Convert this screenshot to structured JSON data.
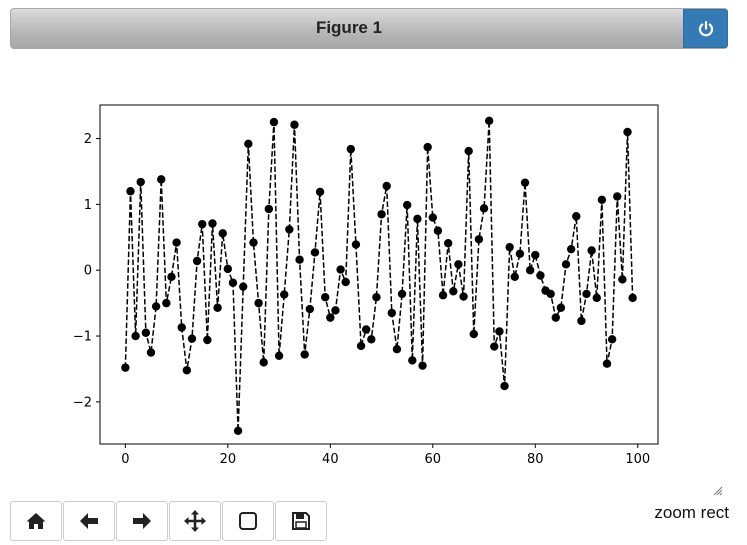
{
  "window": {
    "title": "Figure 1"
  },
  "toolbar": {
    "buttons": [
      {
        "name": "home-button",
        "icon": "home-icon"
      },
      {
        "name": "back-button",
        "icon": "arrow-left-icon"
      },
      {
        "name": "forward-button",
        "icon": "arrow-right-icon"
      },
      {
        "name": "pan-button",
        "icon": "move-icon"
      },
      {
        "name": "zoom-button",
        "icon": "zoom-rect-icon"
      },
      {
        "name": "save-button",
        "icon": "save-icon"
      }
    ]
  },
  "status": {
    "message": "zoom rect"
  },
  "colors": {
    "accent": "#337ab7",
    "series": "#000000"
  },
  "chart_data": {
    "type": "line",
    "title": "",
    "xlabel": "",
    "ylabel": "",
    "xlim": [
      -4.95,
      103.95
    ],
    "ylim": [
      -2.64,
      2.51
    ],
    "xticks": [
      0,
      20,
      40,
      60,
      80,
      100
    ],
    "xtick_labels": [
      "0",
      "20",
      "40",
      "60",
      "80",
      "100"
    ],
    "yticks": [
      2,
      1,
      0,
      -1,
      -2
    ],
    "ytick_labels": [
      "2",
      "1",
      "0",
      "−1",
      "−2"
    ],
    "grid": false,
    "series": [
      {
        "style": "dashed line with circle markers",
        "color": "#000000",
        "x": [
          0,
          1,
          2,
          3,
          4,
          5,
          6,
          7,
          8,
          9,
          10,
          11,
          12,
          13,
          14,
          15,
          16,
          17,
          18,
          19,
          20,
          21,
          22,
          23,
          24,
          25,
          26,
          27,
          28,
          29,
          30,
          31,
          32,
          33,
          34,
          35,
          36,
          37,
          38,
          39,
          40,
          41,
          42,
          43,
          44,
          45,
          46,
          47,
          48,
          49,
          50,
          51,
          52,
          53,
          54,
          55,
          56,
          57,
          58,
          59,
          60,
          61,
          62,
          63,
          64,
          65,
          66,
          67,
          68,
          69,
          70,
          71,
          72,
          73,
          74,
          75,
          76,
          77,
          78,
          79,
          80,
          81,
          82,
          83,
          84,
          85,
          86,
          87,
          88,
          89,
          90,
          91,
          92,
          93,
          94,
          95,
          96,
          97,
          98,
          99
        ],
        "y": [
          -1.48,
          1.2,
          -1.0,
          1.34,
          -0.95,
          -1.25,
          -0.55,
          1.38,
          -0.5,
          -0.1,
          0.42,
          -0.87,
          -1.52,
          -1.04,
          0.14,
          0.7,
          -1.06,
          0.71,
          -0.57,
          0.56,
          0.02,
          -0.19,
          -2.44,
          -0.25,
          1.92,
          0.42,
          -0.5,
          -1.4,
          0.93,
          2.25,
          -1.3,
          -0.37,
          0.62,
          2.21,
          0.16,
          -1.28,
          -0.59,
          0.27,
          1.19,
          -0.41,
          -0.72,
          -0.61,
          0.01,
          -0.18,
          1.84,
          0.39,
          -1.15,
          -0.9,
          -1.05,
          -0.41,
          0.85,
          1.28,
          -0.65,
          -1.2,
          -0.36,
          0.99,
          -1.37,
          0.78,
          -1.45,
          1.87,
          0.8,
          0.6,
          -0.38,
          0.41,
          -0.32,
          0.09,
          -0.4,
          1.81,
          -0.97,
          0.47,
          0.94,
          2.27,
          -1.16,
          -0.93,
          -1.76,
          0.35,
          -0.1,
          0.25,
          1.33,
          0.0,
          0.23,
          -0.08,
          -0.31,
          -0.36,
          -0.72,
          -0.57,
          0.09,
          0.32,
          0.82,
          -0.77,
          -0.36,
          0.3,
          -0.42,
          1.07,
          -1.42,
          -1.05,
          1.12,
          -0.14,
          2.1,
          -0.42
        ]
      }
    ]
  }
}
